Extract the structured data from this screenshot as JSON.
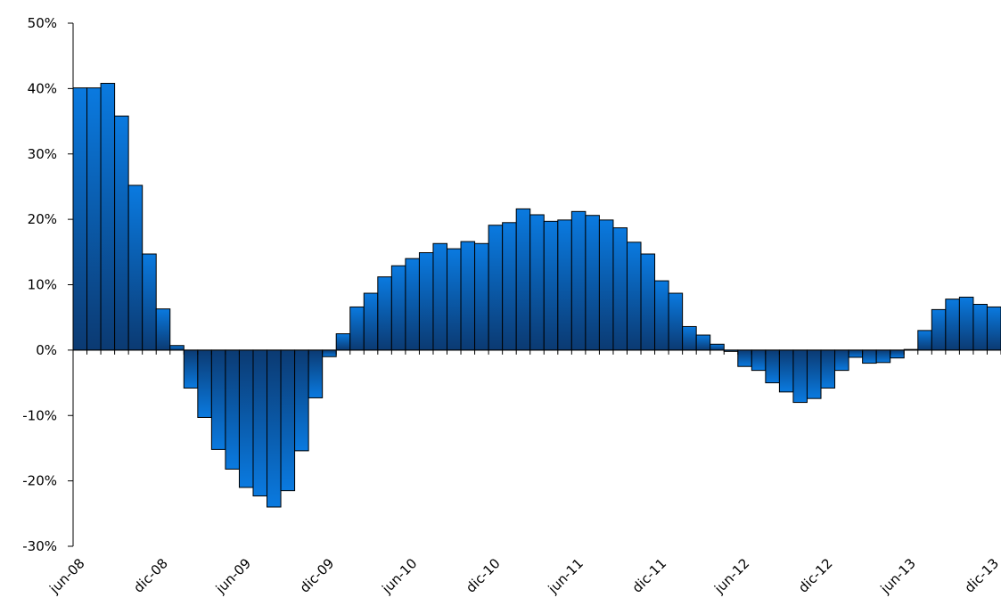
{
  "chart_data": {
    "type": "bar",
    "title": "",
    "xlabel": "",
    "ylabel": "",
    "ylim": [
      -0.3,
      0.5
    ],
    "y_tick_values": [
      -0.3,
      -0.2,
      -0.1,
      0,
      0.1,
      0.2,
      0.3,
      0.4,
      0.5
    ],
    "y_tick_labels": [
      "-30%",
      "-20%",
      "-10%",
      "0%",
      "10%",
      "20%",
      "30%",
      "40%",
      "50%"
    ],
    "x_tick_labels": [
      "jun-08",
      "dic-08",
      "jun-09",
      "dic-09",
      "jun-10",
      "dic-10",
      "jun-11",
      "dic-11",
      "jun-12",
      "dic-12",
      "jun-13",
      "dic-13"
    ],
    "x_tick_every": 6,
    "grid": false,
    "legend": "none",
    "colors": {
      "bar_top": "#0a7ae0",
      "bar_bottom": "#0b3a72",
      "bar_edge": "#000000"
    },
    "categories": [
      "jun-08",
      "jul-08",
      "ago-08",
      "sep-08",
      "oct-08",
      "nov-08",
      "dic-08",
      "ene-09",
      "feb-09",
      "mar-09",
      "abr-09",
      "may-09",
      "jun-09",
      "jul-09",
      "ago-09",
      "sep-09",
      "oct-09",
      "nov-09",
      "dic-09",
      "ene-10",
      "feb-10",
      "mar-10",
      "abr-10",
      "may-10",
      "jun-10",
      "jul-10",
      "ago-10",
      "sep-10",
      "oct-10",
      "nov-10",
      "dic-10",
      "ene-11",
      "feb-11",
      "mar-11",
      "abr-11",
      "may-11",
      "jun-11",
      "jul-11",
      "ago-11",
      "sep-11",
      "oct-11",
      "nov-11",
      "dic-11",
      "ene-12",
      "feb-12",
      "mar-12",
      "abr-12",
      "may-12",
      "jun-12",
      "jul-12",
      "ago-12",
      "sep-12",
      "oct-12",
      "nov-12",
      "dic-12",
      "ene-13",
      "feb-13",
      "mar-13",
      "abr-13",
      "may-13",
      "jun-13",
      "jul-13",
      "ago-13",
      "sep-13",
      "oct-13",
      "nov-13",
      "dic-13"
    ],
    "values": [
      0.401,
      0.401,
      0.408,
      0.358,
      0.252,
      0.147,
      0.063,
      0.007,
      -0.058,
      -0.103,
      -0.152,
      -0.182,
      -0.21,
      -0.223,
      -0.24,
      -0.215,
      -0.154,
      -0.073,
      -0.01,
      0.025,
      0.066,
      0.087,
      0.112,
      0.129,
      0.14,
      0.149,
      0.163,
      0.155,
      0.166,
      0.163,
      0.191,
      0.195,
      0.216,
      0.207,
      0.197,
      0.199,
      0.212,
      0.206,
      0.199,
      0.187,
      0.165,
      0.147,
      0.106,
      0.087,
      0.036,
      0.023,
      0.009,
      -0.002,
      -0.025,
      -0.031,
      -0.05,
      -0.064,
      -0.08,
      -0.074,
      -0.058,
      -0.031,
      -0.011,
      -0.02,
      -0.019,
      -0.012,
      0.001,
      0.03,
      0.062,
      0.078,
      0.081,
      0.07,
      0.066
    ]
  }
}
